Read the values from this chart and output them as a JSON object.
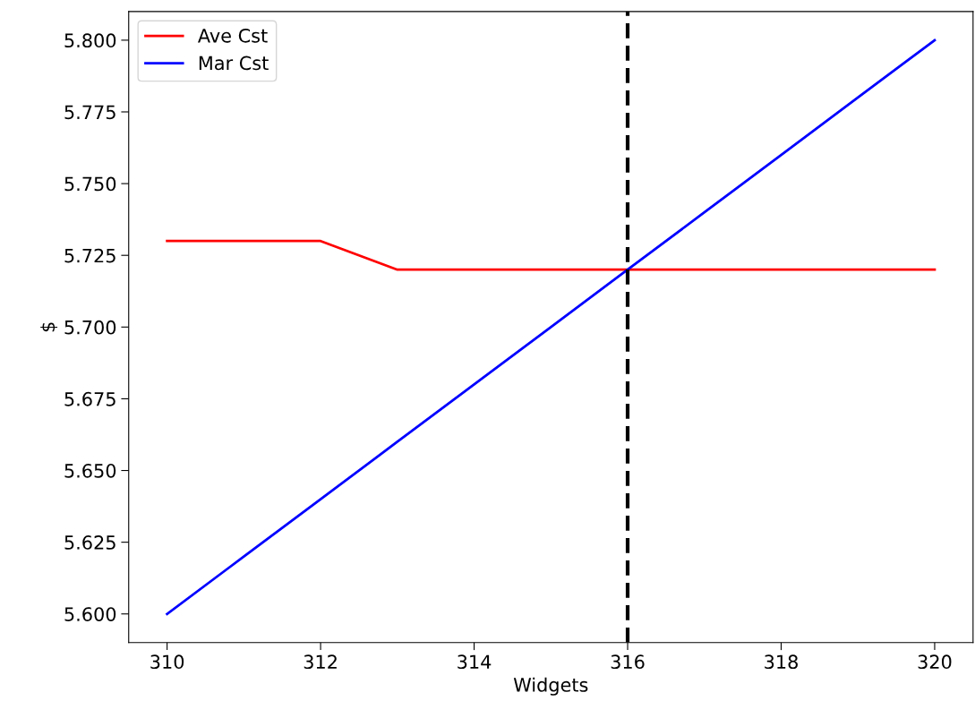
{
  "chart_data": {
    "type": "line",
    "xlabel": "Widgets",
    "ylabel": "$",
    "x": [
      310,
      311,
      312,
      313,
      314,
      315,
      316,
      317,
      318,
      319,
      320
    ],
    "series": [
      {
        "name": "Ave Cst",
        "color": "#ff0000",
        "values": [
          5.73,
          5.73,
          5.73,
          5.72,
          5.72,
          5.72,
          5.72,
          5.72,
          5.72,
          5.72,
          5.72
        ]
      },
      {
        "name": "Mar Cst",
        "color": "#0000ff",
        "values": [
          5.6,
          5.62,
          5.64,
          5.66,
          5.68,
          5.7,
          5.72,
          5.74,
          5.76,
          5.78,
          5.8
        ]
      }
    ],
    "xlim": [
      309.5,
      320.5
    ],
    "xticks": [
      310,
      312,
      314,
      316,
      318,
      320
    ],
    "ylim": [
      5.59,
      5.81
    ],
    "yticks": [
      {
        "value": 5.6,
        "label": "5.600"
      },
      {
        "value": 5.625,
        "label": "5.625"
      },
      {
        "value": 5.65,
        "label": "5.650"
      },
      {
        "value": 5.675,
        "label": "5.675"
      },
      {
        "value": 5.7,
        "label": "5.700"
      },
      {
        "value": 5.725,
        "label": "5.725"
      },
      {
        "value": 5.75,
        "label": "5.750"
      },
      {
        "value": 5.775,
        "label": "5.775"
      },
      {
        "value": 5.8,
        "label": "5.800"
      }
    ],
    "ref_lines": [
      {
        "axis": "x",
        "value": 316,
        "color": "#000000",
        "line_style": "dashed"
      }
    ],
    "grid": false,
    "legend": "top left",
    "marker": "none",
    "line_style": "solid"
  }
}
